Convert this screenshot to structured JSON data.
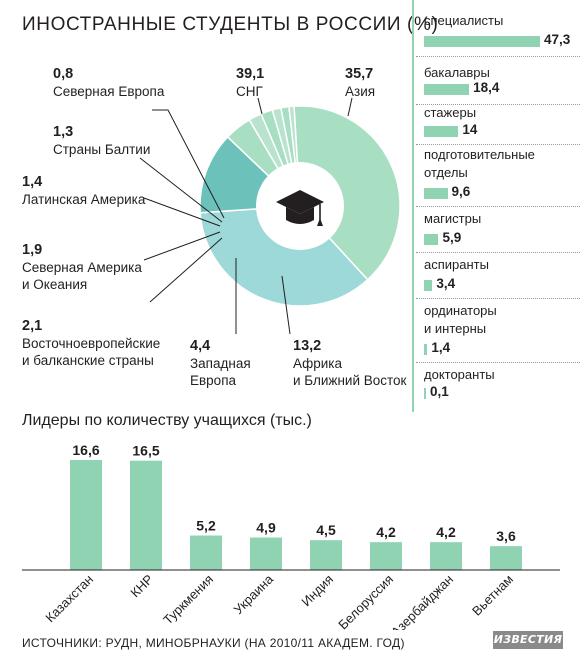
{
  "title": "ИНОСТРАННЫЕ СТУДЕНТЫ В РОССИИ (%)",
  "colors": {
    "accent": "#8fd3b3",
    "pie_main": "#a8dfc3",
    "pie_asia": "#9dd9d8",
    "pie_africa": "#6cc2bb",
    "pie_small": "#b9e3cd",
    "text": "#231f20"
  },
  "chart_data": [
    {
      "type": "pie",
      "title": "ИНОСТРАННЫЕ СТУДЕНТЫ В РОССИИ (%)",
      "center_icon": "graduation-cap-icon",
      "slices": [
        {
          "label": "СНГ",
          "value": 39.1,
          "value_text": "39,1"
        },
        {
          "label": "Азия",
          "value": 35.7,
          "value_text": "35,7"
        },
        {
          "label": "Африка и Ближний Восток",
          "value": 13.2,
          "value_text": "13,2"
        },
        {
          "label": "Западная Европа",
          "value": 4.4,
          "value_text": "4,4"
        },
        {
          "label": "Восточноевропейские и балканские страны",
          "value": 2.1,
          "value_text": "2,1"
        },
        {
          "label": "Северная Америка и Океания",
          "value": 1.9,
          "value_text": "1,9"
        },
        {
          "label": "Латинская Америка",
          "value": 1.4,
          "value_text": "1,4"
        },
        {
          "label": "Страны Балтии",
          "value": 1.3,
          "value_text": "1,3"
        },
        {
          "label": "Северная Европа",
          "value": 0.8,
          "value_text": "0,8"
        }
      ]
    },
    {
      "type": "bar",
      "orientation": "horizontal",
      "categories": [
        "специалисты",
        "бакалавры",
        "стажеры",
        "подготовительные отделы",
        "магистры",
        "аспиранты",
        "ординаторы и интерны",
        "докторанты"
      ],
      "values": [
        47.3,
        18.4,
        14,
        9.6,
        5.9,
        3.4,
        1.4,
        0.1
      ],
      "value_texts": [
        "47,3",
        "18,4",
        "14",
        "9,6",
        "5,9",
        "3,4",
        "1,4",
        "0,1"
      ],
      "xlim": [
        0,
        47.3
      ]
    },
    {
      "type": "bar",
      "title": "Лидеры по количеству учащихся (тыс.)",
      "categories": [
        "Казахстан",
        "КНР",
        "Туркмения",
        "Украина",
        "Индия",
        "Белоруссия",
        "Азербайджан",
        "Вьетнам"
      ],
      "values": [
        16.6,
        16.5,
        5.2,
        4.9,
        4.5,
        4.2,
        4.2,
        3.6
      ],
      "value_texts": [
        "16,6",
        "16,5",
        "5,2",
        "4,9",
        "4,5",
        "4,2",
        "4,2",
        "3,6"
      ],
      "ylim": [
        0,
        16.6
      ]
    }
  ],
  "pie_labels": {
    "cis": {
      "num": "39,1",
      "text": "СНГ"
    },
    "asia": {
      "num": "35,7",
      "text": "Азия"
    },
    "north_europe": {
      "num": "0,8",
      "text": "Северная Европа"
    },
    "baltic": {
      "num": "1,3",
      "text": "Страны Балтии"
    },
    "latin": {
      "num": "1,4",
      "text": "Латинская Америка"
    },
    "namerica": {
      "num": "1,9",
      "text1": "Северная Америка",
      "text2": "и Океания"
    },
    "easteurope": {
      "num": "2,1",
      "text1": "Восточноевропейские",
      "text2": "и балканские страны"
    },
    "westeurope": {
      "num": "4,4",
      "text1": "Западная",
      "text2": "Европа"
    },
    "africa": {
      "num": "13,2",
      "text1": "Африка",
      "text2": "и Ближний Восток"
    }
  },
  "side_panel": [
    {
      "name1": "специалисты",
      "name2": "",
      "value": 47.3,
      "value_text": "47,3"
    },
    {
      "name1": "бакалавры",
      "name2": "",
      "value": 18.4,
      "value_text": "18,4"
    },
    {
      "name1": "стажеры",
      "name2": "",
      "value": 14,
      "value_text": "14"
    },
    {
      "name1": "подготовительные",
      "name2": "отделы",
      "value": 9.6,
      "value_text": "9,6"
    },
    {
      "name1": "магистры",
      "name2": "",
      "value": 5.9,
      "value_text": "5,9"
    },
    {
      "name1": "аспиранты",
      "name2": "",
      "value": 3.4,
      "value_text": "3,4"
    },
    {
      "name1": "ординаторы",
      "name2": "и интерны",
      "value": 1.4,
      "value_text": "1,4"
    },
    {
      "name1": "докторанты",
      "name2": "",
      "value": 0.1,
      "value_text": "0,1"
    }
  ],
  "leaders_title": "Лидеры по количеству учащихся (тыс.)",
  "source": "ИСТОЧНИКИ: РУДН, МИНОБРНАУКИ (НА 2010/11 АКАДЕМ. ГОД)",
  "logo": "ИЗВЕСТИЯ"
}
